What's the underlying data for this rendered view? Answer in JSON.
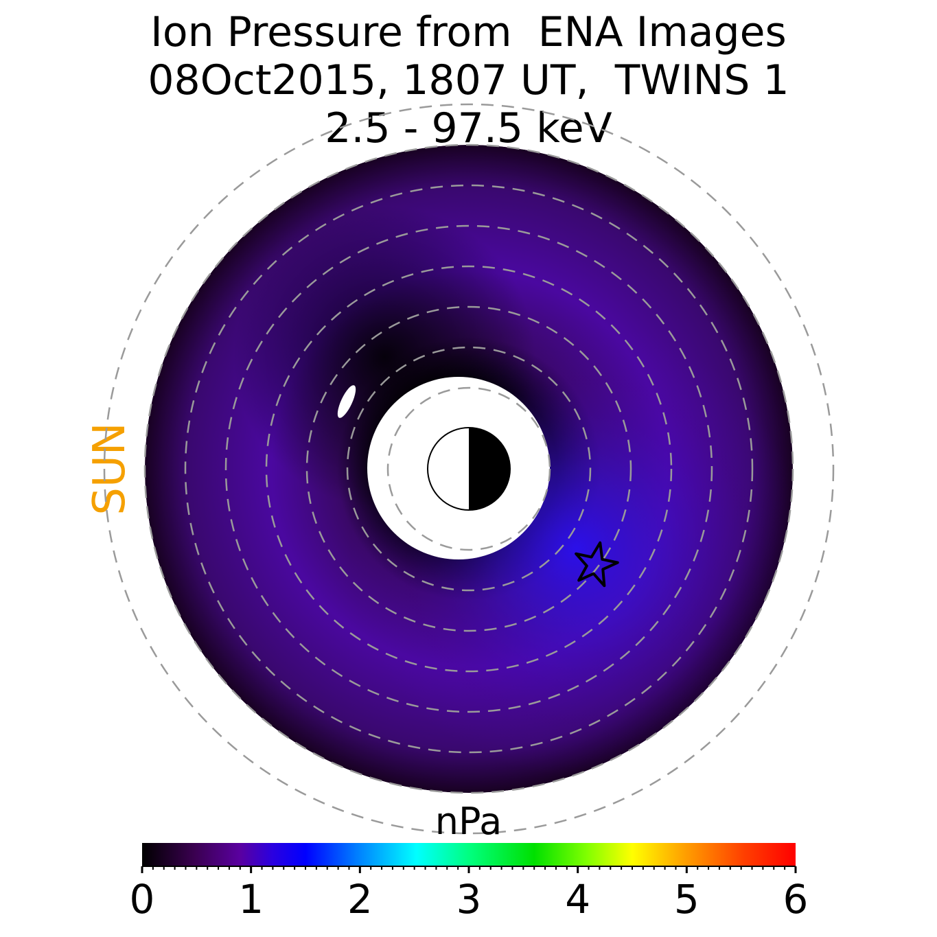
{
  "title": [
    "Ion Pressure from  ENA Images",
    "08Oct2015, 1807 UT,  TWINS 1",
    "2.5 - 97.5 keV"
  ],
  "sun_label": "SUN",
  "colorbar_unit": "nPa",
  "colors": {
    "sun": "#f5a000",
    "dashed_circles": "#9a9a9a",
    "colormap": [
      "#000000",
      "#3a0050",
      "#5a00a0",
      "#2a00e0",
      "#0040ff",
      "#00a0ff",
      "#00ffff",
      "#00ff80",
      "#00e000",
      "#80ff00",
      "#ffff00",
      "#ffa000",
      "#ff4000",
      "#ff0000"
    ]
  },
  "chart_data": {
    "type": "heatmap",
    "projection": "polar equatorial-plane view, Earth at center, Sun to the left",
    "title": "Ion Pressure from  ENA Images\n08Oct2015, 1807 UT,  TWINS 1\n2.5 - 97.5 keV",
    "colorbar": {
      "label": "nPa",
      "range": [
        0,
        6
      ],
      "ticks": [
        0,
        1,
        2,
        3,
        4,
        5,
        6
      ]
    },
    "value_range_shown": [
      0,
      1.1
    ],
    "peak": {
      "value": 1.1,
      "location": "post-midnight sector, dawn side of the ring"
    },
    "dashed_circles": 8,
    "markers": [
      "star near peak",
      "Earth symbol (day side white, night side black)"
    ]
  }
}
